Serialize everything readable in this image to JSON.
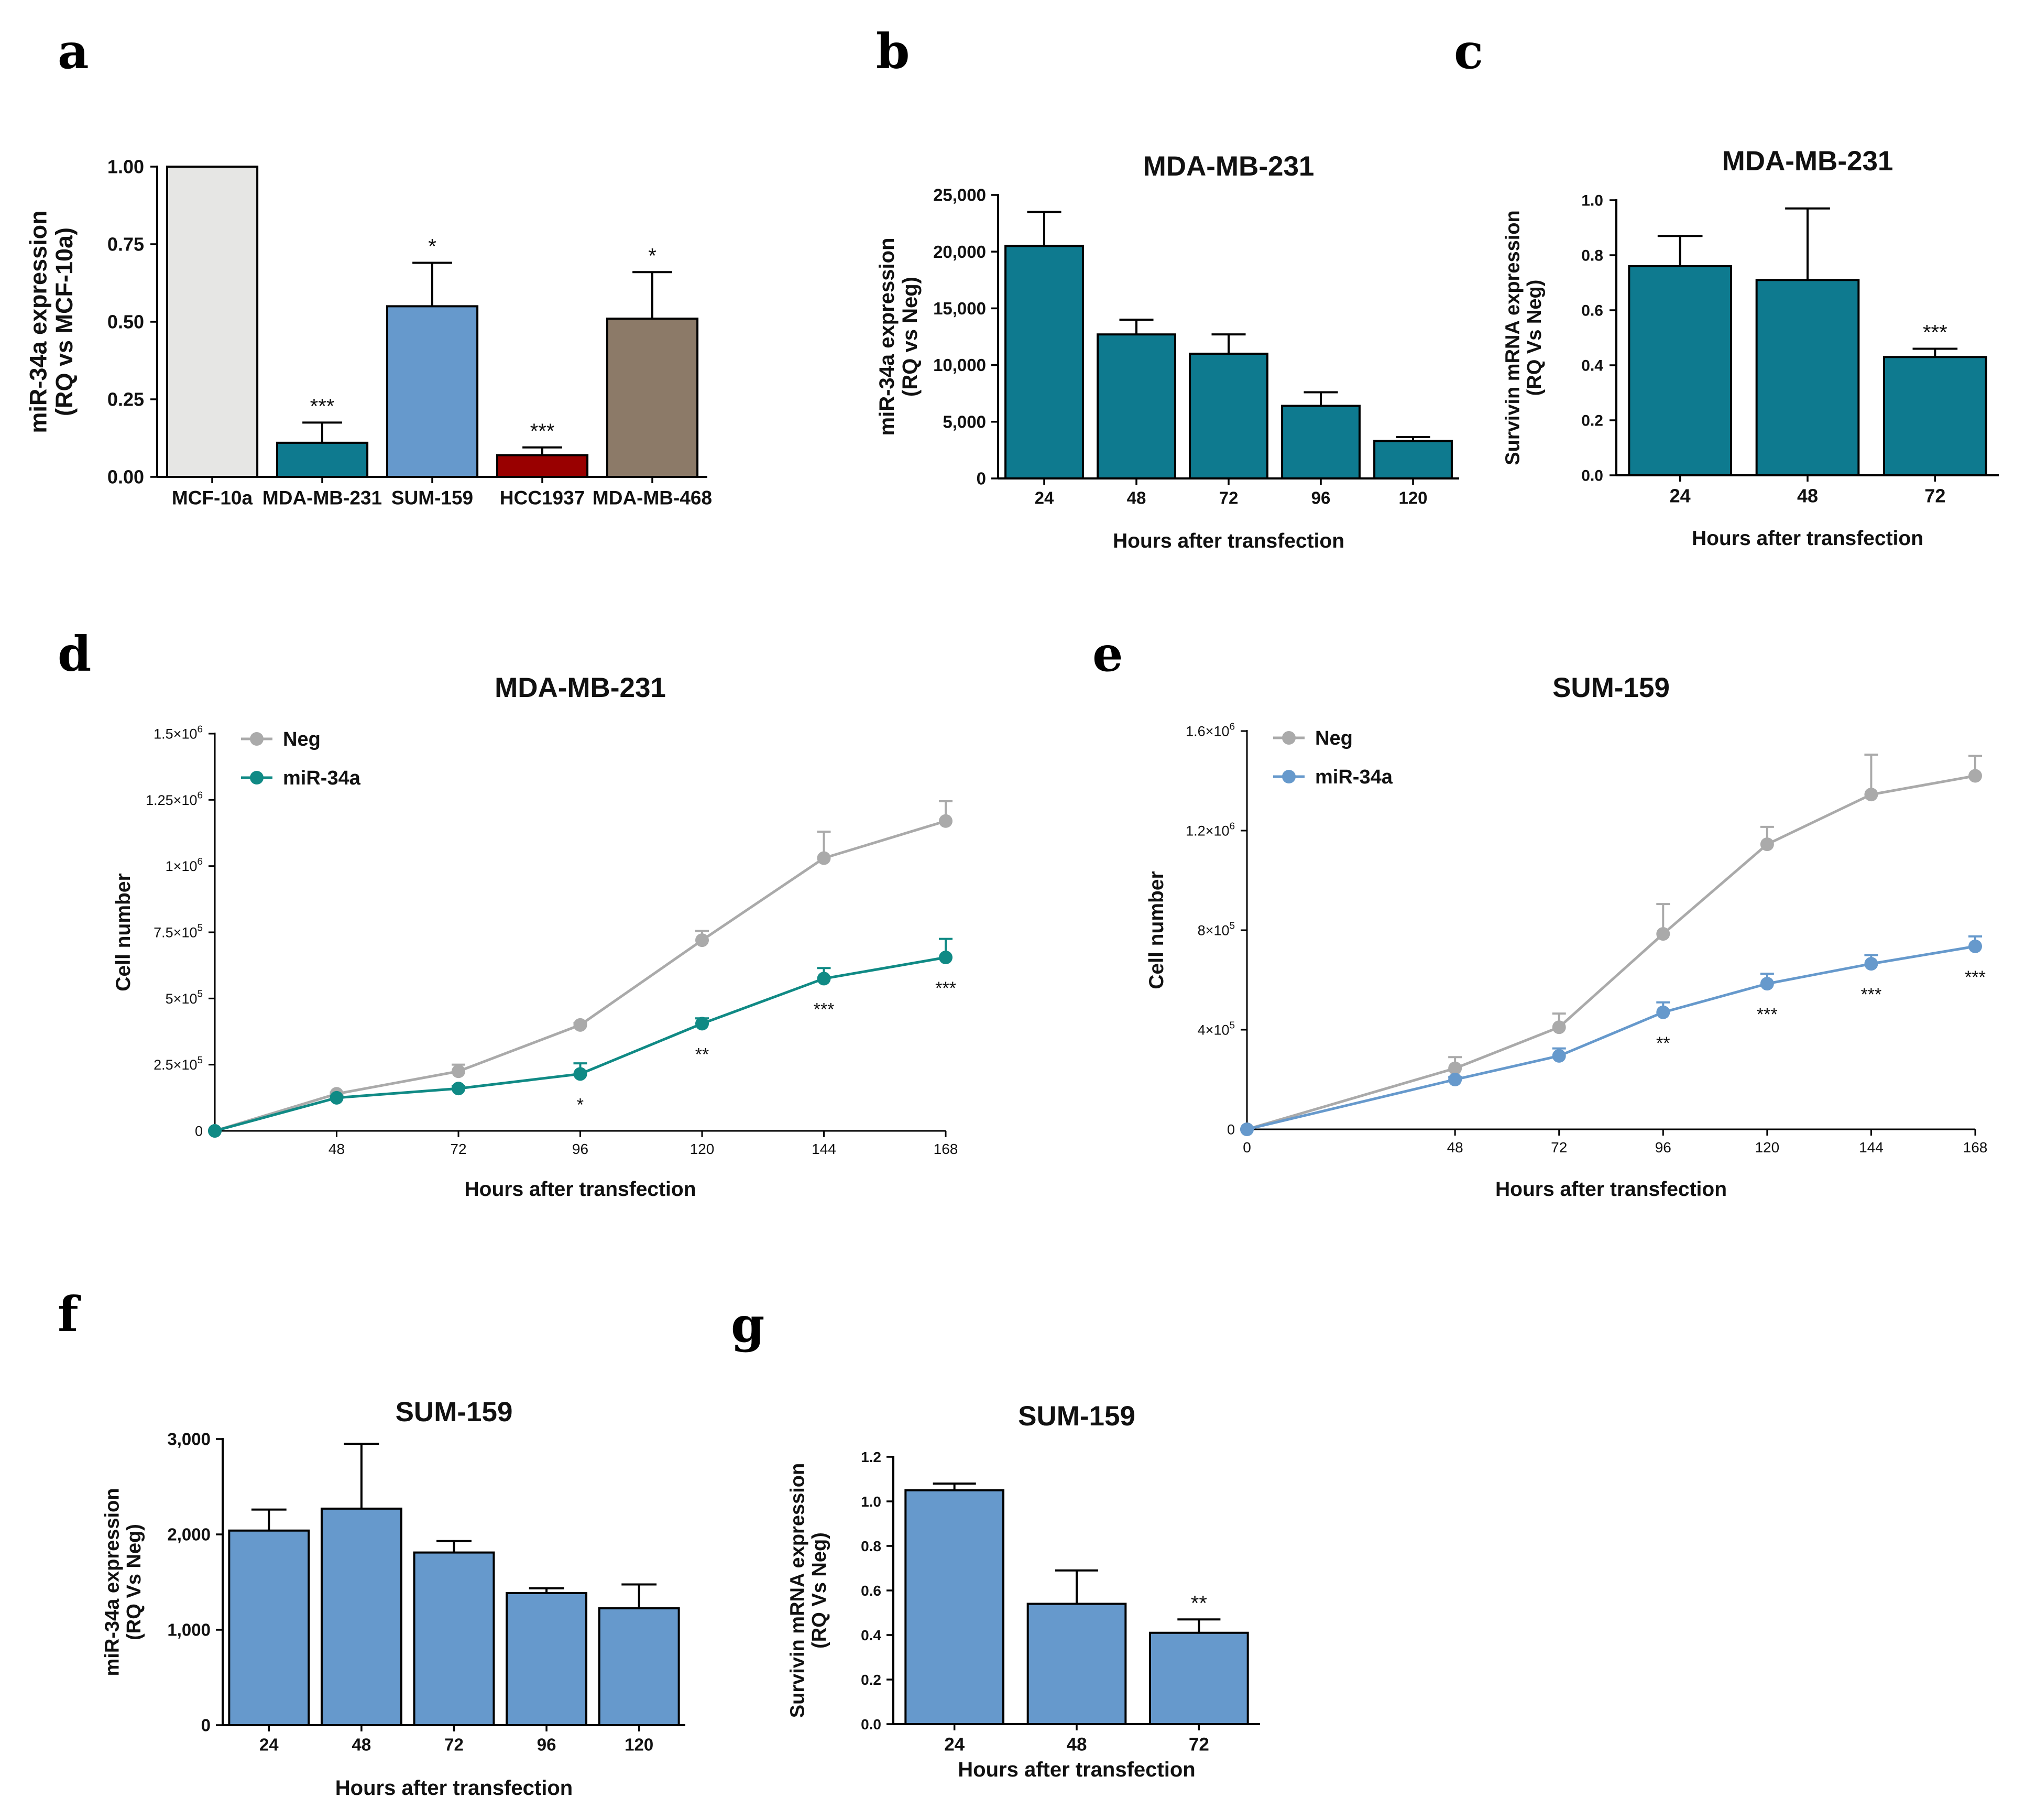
{
  "figure": {
    "panels": [
      {
        "id": "a",
        "letter": "a"
      },
      {
        "id": "b",
        "letter": "b"
      },
      {
        "id": "c",
        "letter": "c"
      },
      {
        "id": "d",
        "letter": "d"
      },
      {
        "id": "e",
        "letter": "e"
      },
      {
        "id": "f",
        "letter": "f"
      },
      {
        "id": "g",
        "letter": "g"
      }
    ]
  },
  "chart_data": [
    {
      "panel": "a",
      "type": "bar",
      "title": "",
      "xlabel": "",
      "ylabel": [
        "miR-34a expression",
        "(RQ vs MCF-10a)"
      ],
      "categories": [
        "MCF-10a",
        "MDA-MB-231",
        "SUM-159",
        "HCC1937",
        "MDA-MB-468"
      ],
      "values": [
        1.0,
        0.11,
        0.55,
        0.07,
        0.51
      ],
      "errors": [
        0,
        0.065,
        0.14,
        0.025,
        0.15
      ],
      "significance": [
        "",
        "***",
        "*",
        "***",
        "*"
      ],
      "colors": [
        "#e6e6e4",
        "#0e7a8f",
        "#6699cc",
        "#990000",
        "#8c7a68"
      ],
      "ylim": [
        0,
        1.0
      ],
      "ticks": [
        0,
        0.25,
        0.5,
        0.75,
        1.0
      ],
      "tick_labels": [
        "0.00",
        "0.25",
        "0.50",
        "0.75",
        "1.00"
      ]
    },
    {
      "panel": "b",
      "type": "bar",
      "title": "MDA-MB-231",
      "xlabel": "Hours after transfection",
      "ylabel": [
        "miR-34a expression",
        "(RQ vs Neg)"
      ],
      "categories": [
        "24",
        "48",
        "72",
        "96",
        "120"
      ],
      "values": [
        20500,
        12700,
        11000,
        6400,
        3300
      ],
      "errors": [
        3000,
        1300,
        1700,
        1200,
        350
      ],
      "significance": [
        "",
        "",
        "",
        "",
        ""
      ],
      "colors": [
        "#0e7a8f"
      ],
      "ylim": [
        0,
        25000
      ],
      "ticks": [
        0,
        5000,
        10000,
        15000,
        20000,
        25000
      ],
      "tick_labels": [
        "0",
        "5,000",
        "10,000",
        "15,000",
        "20,000",
        "25,000"
      ]
    },
    {
      "panel": "c",
      "type": "bar",
      "title": "MDA-MB-231",
      "xlabel": "Hours after transfection",
      "ylabel": [
        "Survivin mRNA expression",
        "(RQ Vs Neg)"
      ],
      "categories": [
        "24",
        "48",
        "72"
      ],
      "values": [
        0.76,
        0.71,
        0.43
      ],
      "errors": [
        0.11,
        0.26,
        0.03
      ],
      "significance": [
        "",
        "",
        "***"
      ],
      "colors": [
        "#0e7a8f"
      ],
      "ylim": [
        0,
        1.0
      ],
      "ticks": [
        0,
        0.2,
        0.4,
        0.6,
        0.8,
        1.0
      ],
      "tick_labels": [
        "0.0",
        "0.2",
        "0.4",
        "0.6",
        "0.8",
        "1.0"
      ]
    },
    {
      "panel": "d",
      "type": "line",
      "title": "MDA-MB-231",
      "xlabel": "Hours after transfection",
      "ylabel": "Cell number",
      "x": [
        24,
        48,
        72,
        96,
        120,
        144,
        168
      ],
      "x_tick_values": [
        48,
        72,
        96,
        120,
        144,
        168
      ],
      "x_tick_labels": [
        "48",
        "72",
        "96",
        "120",
        "144",
        "168"
      ],
      "xlim": [
        24,
        168
      ],
      "ylim": [
        0,
        1500000
      ],
      "y_ticks": [
        0,
        250000,
        500000,
        750000,
        1000000,
        1250000,
        1500000
      ],
      "y_tick_labels": [
        {
          "base": "0",
          "exp": ""
        },
        {
          "base": "2.5×10",
          "exp": "5"
        },
        {
          "base": "5×10",
          "exp": "5"
        },
        {
          "base": "7.5×10",
          "exp": "5"
        },
        {
          "base": "1×10",
          "exp": "6"
        },
        {
          "base": "1.25×10",
          "exp": "6"
        },
        {
          "base": "1.5×10",
          "exp": "6"
        }
      ],
      "series": [
        {
          "name": "Neg",
          "color": "#aaaaaa",
          "values": [
            0,
            140000,
            225000,
            400000,
            720000,
            1030000,
            1170000
          ],
          "errors": [
            0,
            5000,
            25000,
            8000,
            35000,
            100000,
            75000
          ],
          "significance": [
            "",
            "",
            "",
            "",
            "",
            "",
            ""
          ]
        },
        {
          "name": "miR-34a",
          "color": "#108a85",
          "values": [
            0,
            125000,
            160000,
            215000,
            405000,
            575000,
            655000
          ],
          "errors": [
            0,
            5000,
            10000,
            40000,
            20000,
            40000,
            70000
          ],
          "significance": [
            "",
            "",
            "",
            "*",
            "**",
            "***",
            "***"
          ]
        }
      ]
    },
    {
      "panel": "e",
      "type": "line",
      "title": "SUM-159",
      "xlabel": "Hours after transfection",
      "ylabel": "Cell number",
      "x": [
        0,
        48,
        72,
        96,
        120,
        144,
        168
      ],
      "x_tick_values": [
        0,
        48,
        72,
        96,
        120,
        144,
        168
      ],
      "x_tick_labels": [
        "0",
        "48",
        "72",
        "96",
        "120",
        "144",
        "168"
      ],
      "xlim": [
        0,
        168
      ],
      "ylim": [
        0,
        1600000
      ],
      "y_ticks": [
        0,
        400000,
        800000,
        1200000,
        1600000
      ],
      "y_tick_labels": [
        {
          "base": "0",
          "exp": ""
        },
        {
          "base": "4×10",
          "exp": "5"
        },
        {
          "base": "8×10",
          "exp": "5"
        },
        {
          "base": "1.2×10",
          "exp": "6"
        },
        {
          "base": "1.6×10",
          "exp": "6"
        }
      ],
      "series": [
        {
          "name": "Neg",
          "color": "#aaaaaa",
          "values": [
            0,
            245000,
            410000,
            785000,
            1145000,
            1345000,
            1420000
          ],
          "errors": [
            0,
            45000,
            55000,
            120000,
            70000,
            160000,
            80000
          ],
          "significance": [
            "",
            "",
            "",
            "",
            "",
            "",
            ""
          ]
        },
        {
          "name": "miR-34a",
          "color": "#6699cc",
          "values": [
            0,
            200000,
            295000,
            470000,
            585000,
            665000,
            735000
          ],
          "errors": [
            0,
            10000,
            30000,
            40000,
            40000,
            35000,
            40000
          ],
          "significance": [
            "",
            "",
            "",
            "**",
            "***",
            "***",
            "***"
          ]
        }
      ]
    },
    {
      "panel": "f",
      "type": "bar",
      "title": "SUM-159",
      "xlabel": "Hours after transfection",
      "ylabel": [
        "miR-34a expression",
        "(RQ Vs Neg)"
      ],
      "categories": [
        "24",
        "48",
        "72",
        "96",
        "120"
      ],
      "values": [
        2040,
        2270,
        1810,
        1385,
        1225
      ],
      "errors": [
        220,
        680,
        120,
        50,
        250
      ],
      "significance": [
        "",
        "",
        "",
        "",
        ""
      ],
      "colors": [
        "#6699cc"
      ],
      "ylim": [
        0,
        3000
      ],
      "ticks": [
        0,
        1000,
        2000,
        3000
      ],
      "tick_labels": [
        "0",
        "1,000",
        "2,000",
        "3,000"
      ]
    },
    {
      "panel": "g",
      "type": "bar",
      "title": "SUM-159",
      "xlabel": "Hours after transfection",
      "ylabel": [
        "Survivin mRNA expression",
        "(RQ Vs Neg)"
      ],
      "categories": [
        "24",
        "48",
        "72"
      ],
      "values": [
        1.05,
        0.54,
        0.41
      ],
      "errors": [
        0.03,
        0.15,
        0.06
      ],
      "significance": [
        "",
        "",
        "**"
      ],
      "colors": [
        "#6699cc"
      ],
      "ylim": [
        0,
        1.2
      ],
      "ticks": [
        0,
        0.2,
        0.4,
        0.6,
        0.8,
        1.0,
        1.2
      ],
      "tick_labels": [
        "0.0",
        "0.2",
        "0.4",
        "0.6",
        "0.8",
        "1.0",
        "1.2"
      ]
    }
  ]
}
